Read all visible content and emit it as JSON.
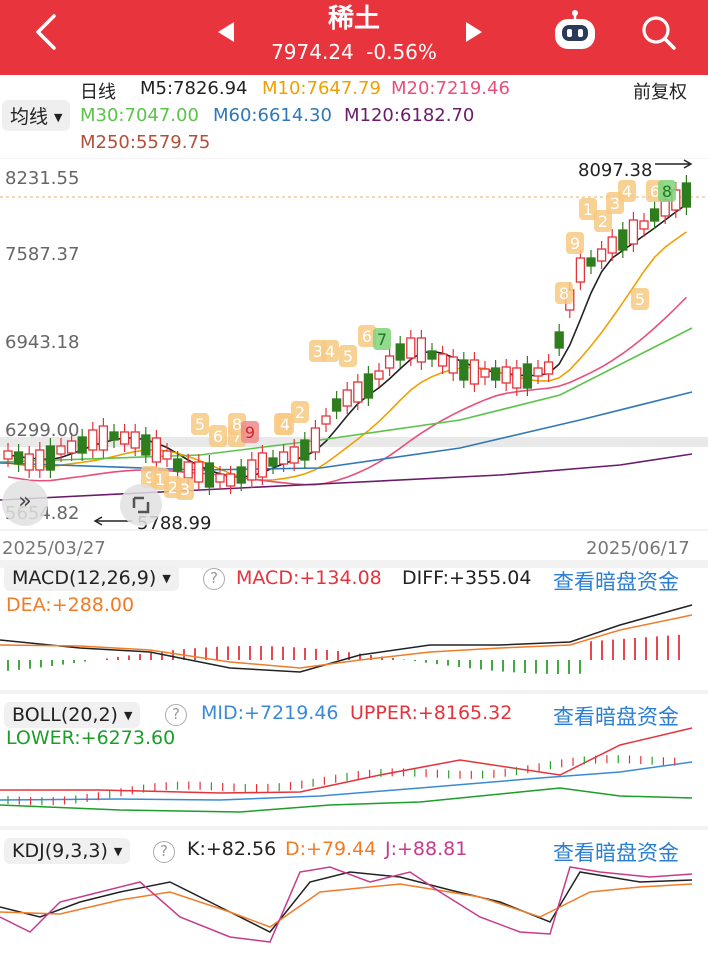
{
  "header": {
    "title": "稀土",
    "price": "7974.24",
    "change": "-0.56%",
    "back_icon": "chevron-left-icon",
    "prev_icon": "triangle-left-icon",
    "next_icon": "triangle-right-icon",
    "robot_icon": "robot-assistant-icon",
    "search_icon": "search-icon",
    "bg": "#e8343c"
  },
  "ma_legend": {
    "period": "日线",
    "m5": "M5:7826.94",
    "m10": "M10:7647.79",
    "m20": "M20:7219.46",
    "m30": "M30:7047.00",
    "m60": "M60:6614.30",
    "m120": "M120:6182.70",
    "m250": "M250:5579.75",
    "adjust": "前复权",
    "indicator_select": "均线",
    "colors": {
      "m5": "#222222",
      "m10": "#f0a000",
      "m20": "#e8507a",
      "m30": "#5cc34a",
      "m60": "#2f78b8",
      "m120": "#6a1c6a",
      "m250": "#b2503a"
    }
  },
  "main_chart": {
    "y_ticks": [
      "8231.55",
      "7587.37",
      "6943.18",
      "6299.00",
      "5654.82"
    ],
    "high_marker": "8097.38",
    "low_marker": "5788.99",
    "date_start": "2025/03/27",
    "date_end": "2025/06/17",
    "td_badges_up": [
      "5",
      "6",
      "7",
      "8",
      "9",
      "1",
      "2",
      "3",
      "4",
      "5",
      "6",
      "7",
      "8",
      "9",
      "1",
      "2",
      "3",
      "4",
      "5",
      "6",
      "8",
      "9"
    ],
    "td_badges_down": [
      "1",
      "2",
      "3",
      "4",
      "1",
      "2",
      "3",
      "7"
    ]
  },
  "macd": {
    "select": "MACD(12,26,9)",
    "macd": "MACD:+134.08",
    "diff": "DIFF:+355.04",
    "dea": "DEA:+288.00",
    "link": "查看暗盘资金"
  },
  "boll": {
    "select": "BOLL(20,2)",
    "mid": "MID:+7219.46",
    "upper": "UPPER:+8165.32",
    "lower": "LOWER:+6273.60",
    "link": "查看暗盘资金"
  },
  "kdj": {
    "select": "KDJ(9,3,3)",
    "k": "K:+82.56",
    "d": "D:+79.44",
    "j": "J:+88.81",
    "link": "查看暗盘资金"
  }
}
